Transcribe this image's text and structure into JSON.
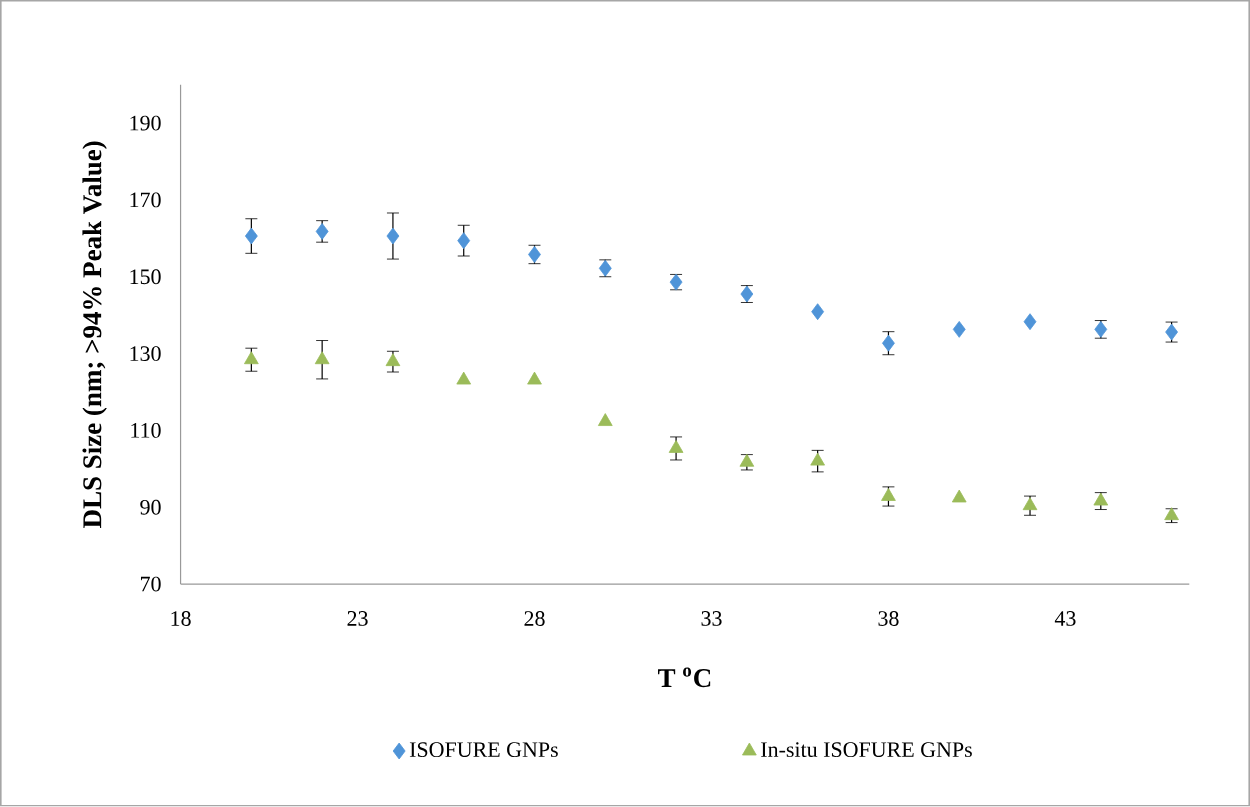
{
  "chart_data": {
    "type": "scatter",
    "xlabel": "T $^{o}$C",
    "ylabel": "DLS Size (nm; >94% Peak Value)",
    "x": [
      20,
      22,
      24,
      26,
      28,
      30,
      32,
      34,
      36,
      38,
      40,
      42,
      44,
      46
    ],
    "series": [
      {
        "name": "ISOFURE GNPs",
        "color": "#4f94d8",
        "marker": "diamond",
        "values": [
          160.6,
          161.8,
          160.6,
          159.4,
          155.8,
          152.2,
          148.6,
          145.5,
          140.9,
          132.7,
          136.3,
          138.3,
          136.3,
          135.6
        ],
        "errors": [
          4.5,
          2.8,
          6,
          4,
          2.4,
          2.2,
          2,
          2.2,
          null,
          3,
          null,
          null,
          2.3,
          2.6
        ]
      },
      {
        "name": "In-situ ISOFURE GNPs",
        "color": "#9bbb59",
        "marker": "triangle",
        "values": [
          128.4,
          128.4,
          127.9,
          123.1,
          123.1,
          112.3,
          105.3,
          101.7,
          102,
          92.8,
          92.4,
          90.4,
          91.6,
          87.8
        ],
        "errors": [
          3,
          5,
          2.7,
          null,
          null,
          null,
          3,
          2,
          2.8,
          2.5,
          null,
          2.5,
          2.2,
          1.8
        ]
      }
    ],
    "xlim": [
      18,
      46.5
    ],
    "ylim": [
      70,
      200
    ],
    "xticks": [
      18,
      23,
      28,
      33,
      38,
      43
    ],
    "yticks": [
      70,
      90,
      110,
      130,
      150,
      170,
      190
    ],
    "grid": false,
    "legend": "bottom"
  }
}
